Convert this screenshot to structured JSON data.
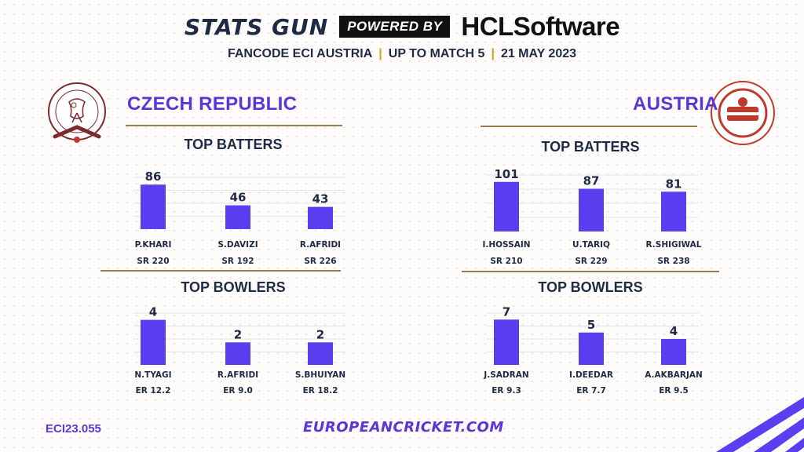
{
  "header": {
    "brand": "STATS GUN",
    "powered_by": "POWERED BY",
    "sponsor": "HCLSoftware",
    "subtitle_parts": [
      "FANCODE ECI AUSTRIA",
      "UP TO MATCH 5",
      "21 MAY 2023"
    ],
    "separator": "|"
  },
  "logos": {
    "left": "czech-cricket-crest-icon",
    "right": "austria-cricket-logo-icon"
  },
  "colors": {
    "bar": "#5a3ff0",
    "accent": "#5b35d6",
    "rule": "#9a7b4f",
    "separator": "#d4a017"
  },
  "teams": [
    {
      "name": "CZECH REPUBLIC"
    },
    {
      "name": "AUSTRIA"
    }
  ],
  "chart_data": [
    {
      "type": "bar",
      "title": "TOP BATTERS",
      "team": "CZECH REPUBLIC",
      "categories": [
        "P.KHARI",
        "S.DAVIZI",
        "R.AFRIDI"
      ],
      "values": [
        86,
        46,
        43
      ],
      "stats": [
        "SR 220",
        "SR 192",
        "SR 226"
      ],
      "ylim": [
        0,
        100
      ]
    },
    {
      "type": "bar",
      "title": "TOP BOWLERS",
      "team": "CZECH REPUBLIC",
      "categories": [
        "N.TYAGI",
        "R.AFRIDI",
        "S.BHUIYAN"
      ],
      "values": [
        4,
        2,
        2
      ],
      "stats": [
        "ER 12.2",
        "ER 9.0",
        "ER 18.2"
      ],
      "ylim": [
        0,
        4.6
      ]
    },
    {
      "type": "bar",
      "title": "TOP BATTERS",
      "team": "AUSTRIA",
      "categories": [
        "I.HOSSAIN",
        "U.TARIQ",
        "R.SHIGIWAL"
      ],
      "values": [
        101,
        87,
        81
      ],
      "stats": [
        "SR 210",
        "SR 229",
        "SR 238"
      ],
      "ylim": [
        0,
        115
      ]
    },
    {
      "type": "bar",
      "title": "TOP BOWLERS",
      "team": "AUSTRIA",
      "categories": [
        "J.SADRAN",
        "I.DEEDAR",
        "A.AKBARJAN"
      ],
      "values": [
        7,
        5,
        4
      ],
      "stats": [
        "ER 9.3",
        "ER 7.7",
        "ER 9.5"
      ],
      "ylim": [
        0,
        8
      ]
    }
  ],
  "footer": {
    "code": "ECI23.055",
    "url": "EUROPEANCRICKET.COM"
  }
}
